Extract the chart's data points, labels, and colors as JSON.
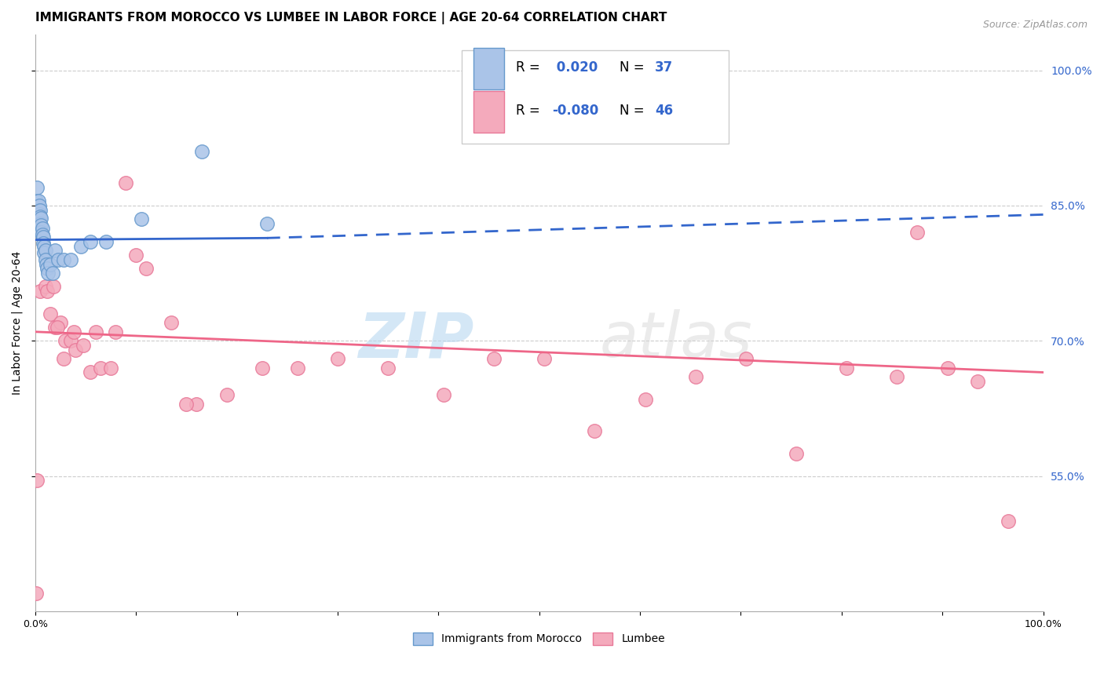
{
  "title": "IMMIGRANTS FROM MOROCCO VS LUMBEE IN LABOR FORCE | AGE 20-64 CORRELATION CHART",
  "source": "Source: ZipAtlas.com",
  "ylabel": "In Labor Force | Age 20-64",
  "xlim": [
    0.0,
    1.0
  ],
  "ylim": [
    0.4,
    1.04
  ],
  "x_ticks": [
    0.0,
    0.1,
    0.2,
    0.3,
    0.4,
    0.5,
    0.6,
    0.7,
    0.8,
    0.9,
    1.0
  ],
  "x_tick_labels": [
    "0.0%",
    "",
    "",
    "",
    "",
    "",
    "",
    "",
    "",
    "",
    "100.0%"
  ],
  "right_yticks": [
    0.55,
    0.7,
    0.85,
    1.0
  ],
  "right_ytick_labels": [
    "55.0%",
    "70.0%",
    "85.0%",
    "100.0%"
  ],
  "legend_label1": "Immigrants from Morocco",
  "legend_label2": "Lumbee",
  "morocco_color": "#aac4e8",
  "lumbee_color": "#f4aabc",
  "morocco_edge": "#6699cc",
  "lumbee_edge": "#e87898",
  "trendline_morocco_color": "#3366cc",
  "trendline_lumbee_color": "#ee6688",
  "r_morocco": 0.02,
  "r_lumbee": -0.08,
  "watermark_zip": "ZIP",
  "watermark_atlas": "atlas",
  "morocco_x": [
    0.001,
    0.002,
    0.002,
    0.003,
    0.003,
    0.003,
    0.004,
    0.004,
    0.005,
    0.005,
    0.005,
    0.006,
    0.006,
    0.006,
    0.007,
    0.007,
    0.008,
    0.008,
    0.009,
    0.009,
    0.01,
    0.01,
    0.011,
    0.012,
    0.013,
    0.015,
    0.017,
    0.02,
    0.023,
    0.028,
    0.035,
    0.045,
    0.055,
    0.07,
    0.105,
    0.165,
    0.23
  ],
  "morocco_y": [
    0.855,
    0.84,
    0.87,
    0.855,
    0.845,
    0.835,
    0.85,
    0.84,
    0.845,
    0.838,
    0.83,
    0.836,
    0.828,
    0.82,
    0.825,
    0.818,
    0.815,
    0.808,
    0.805,
    0.798,
    0.8,
    0.79,
    0.785,
    0.78,
    0.775,
    0.785,
    0.775,
    0.8,
    0.79,
    0.79,
    0.79,
    0.805,
    0.81,
    0.81,
    0.835,
    0.91,
    0.83
  ],
  "lumbee_x": [
    0.001,
    0.005,
    0.01,
    0.015,
    0.02,
    0.025,
    0.03,
    0.035,
    0.04,
    0.048,
    0.055,
    0.065,
    0.075,
    0.09,
    0.11,
    0.135,
    0.16,
    0.19,
    0.225,
    0.26,
    0.3,
    0.35,
    0.405,
    0.455,
    0.505,
    0.555,
    0.605,
    0.655,
    0.705,
    0.755,
    0.805,
    0.855,
    0.875,
    0.905,
    0.935,
    0.965,
    0.002,
    0.012,
    0.018,
    0.022,
    0.028,
    0.038,
    0.06,
    0.08,
    0.1,
    0.15
  ],
  "lumbee_y": [
    0.42,
    0.755,
    0.76,
    0.73,
    0.715,
    0.72,
    0.7,
    0.7,
    0.69,
    0.695,
    0.665,
    0.67,
    0.67,
    0.875,
    0.78,
    0.72,
    0.63,
    0.64,
    0.67,
    0.67,
    0.68,
    0.67,
    0.64,
    0.68,
    0.68,
    0.6,
    0.635,
    0.66,
    0.68,
    0.575,
    0.67,
    0.66,
    0.82,
    0.67,
    0.655,
    0.5,
    0.545,
    0.755,
    0.76,
    0.715,
    0.68,
    0.71,
    0.71,
    0.71,
    0.795,
    0.63
  ],
  "trend_morocco_x0": 0.0,
  "trend_morocco_x_solid_end": 0.23,
  "trend_morocco_x_dash_end": 1.0,
  "trend_morocco_y0": 0.812,
  "trend_morocco_y_solid_end": 0.814,
  "trend_morocco_y_dash_end": 0.84,
  "trend_lumbee_x0": 0.0,
  "trend_lumbee_x1": 1.0,
  "trend_lumbee_y0": 0.71,
  "trend_lumbee_y1": 0.665,
  "grid_color": "#cccccc",
  "background_color": "#ffffff",
  "title_fontsize": 11,
  "axis_label_fontsize": 10,
  "tick_fontsize": 9,
  "legend_fontsize": 11
}
